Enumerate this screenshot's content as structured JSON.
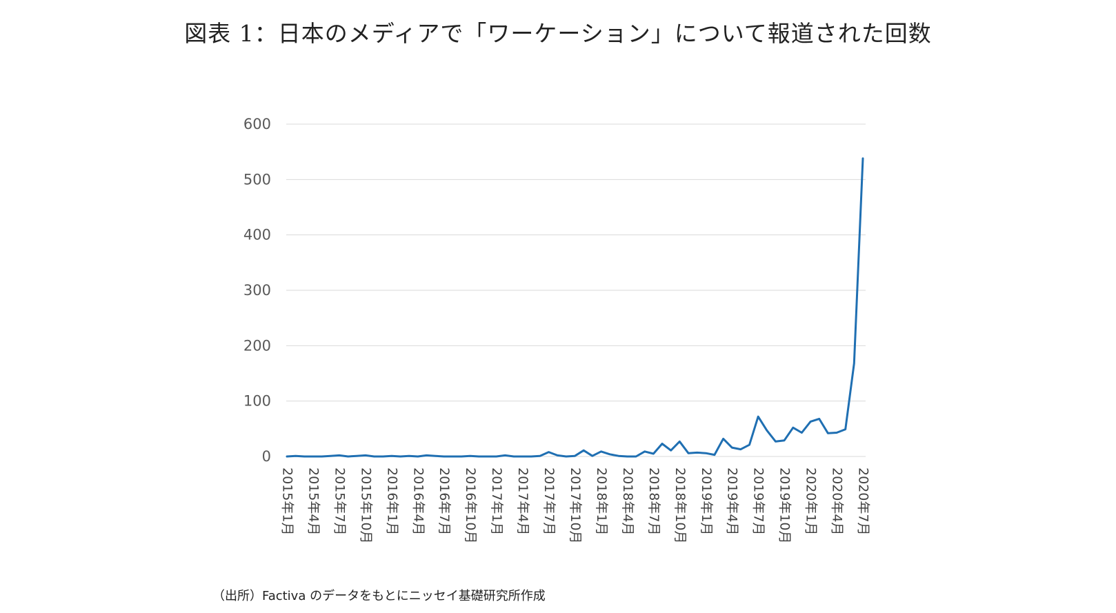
{
  "chart_data": {
    "type": "line",
    "title": "図表 1：日本のメディアで「ワーケーション」について報道された回数",
    "source": "（出所）Factiva のデータをもとにニッセイ基礎研究所作成",
    "xlabel": "",
    "ylabel": "",
    "ylim": [
      0,
      600
    ],
    "yticks": [
      "0",
      "100",
      "200",
      "300",
      "400",
      "500",
      "600"
    ],
    "grid": true,
    "legend": "none",
    "line_color": "#1f6fb2",
    "x_tick_labels": [
      "2015年1月",
      "2015年4月",
      "2015年7月",
      "2015年10月",
      "2016年1月",
      "2016年4月",
      "2016年7月",
      "2016年10月",
      "2017年1月",
      "2017年4月",
      "2017年7月",
      "2017年10月",
      "2018年1月",
      "2018年4月",
      "2018年7月",
      "2018年10月",
      "2019年1月",
      "2019年4月",
      "2019年7月",
      "2019年10月",
      "2020年1月",
      "2020年4月",
      "2020年7月"
    ],
    "x": [
      "2015-01",
      "2015-02",
      "2015-03",
      "2015-04",
      "2015-05",
      "2015-06",
      "2015-07",
      "2015-08",
      "2015-09",
      "2015-10",
      "2015-11",
      "2015-12",
      "2016-01",
      "2016-02",
      "2016-03",
      "2016-04",
      "2016-05",
      "2016-06",
      "2016-07",
      "2016-08",
      "2016-09",
      "2016-10",
      "2016-11",
      "2016-12",
      "2017-01",
      "2017-02",
      "2017-03",
      "2017-04",
      "2017-05",
      "2017-06",
      "2017-07",
      "2017-08",
      "2017-09",
      "2017-10",
      "2017-11",
      "2017-12",
      "2018-01",
      "2018-02",
      "2018-03",
      "2018-04",
      "2018-05",
      "2018-06",
      "2018-07",
      "2018-08",
      "2018-09",
      "2018-10",
      "2018-11",
      "2018-12",
      "2019-01",
      "2019-02",
      "2019-03",
      "2019-04",
      "2019-05",
      "2019-06",
      "2019-07",
      "2019-08",
      "2019-09",
      "2019-10",
      "2019-11",
      "2019-12",
      "2020-01",
      "2020-02",
      "2020-03",
      "2020-04",
      "2020-05",
      "2020-06",
      "2020-07"
    ],
    "values": [
      0,
      1,
      0,
      0,
      0,
      1,
      2,
      0,
      1,
      2,
      0,
      0,
      1,
      0,
      1,
      0,
      2,
      1,
      0,
      0,
      0,
      1,
      0,
      0,
      0,
      2,
      0,
      0,
      0,
      1,
      8,
      2,
      0,
      1,
      11,
      1,
      9,
      4,
      1,
      0,
      0,
      9,
      5,
      23,
      11,
      27,
      6,
      7,
      6,
      3,
      32,
      16,
      13,
      21,
      72,
      47,
      27,
      29,
      52,
      43,
      63,
      68,
      42,
      43,
      49,
      168,
      538
    ]
  }
}
